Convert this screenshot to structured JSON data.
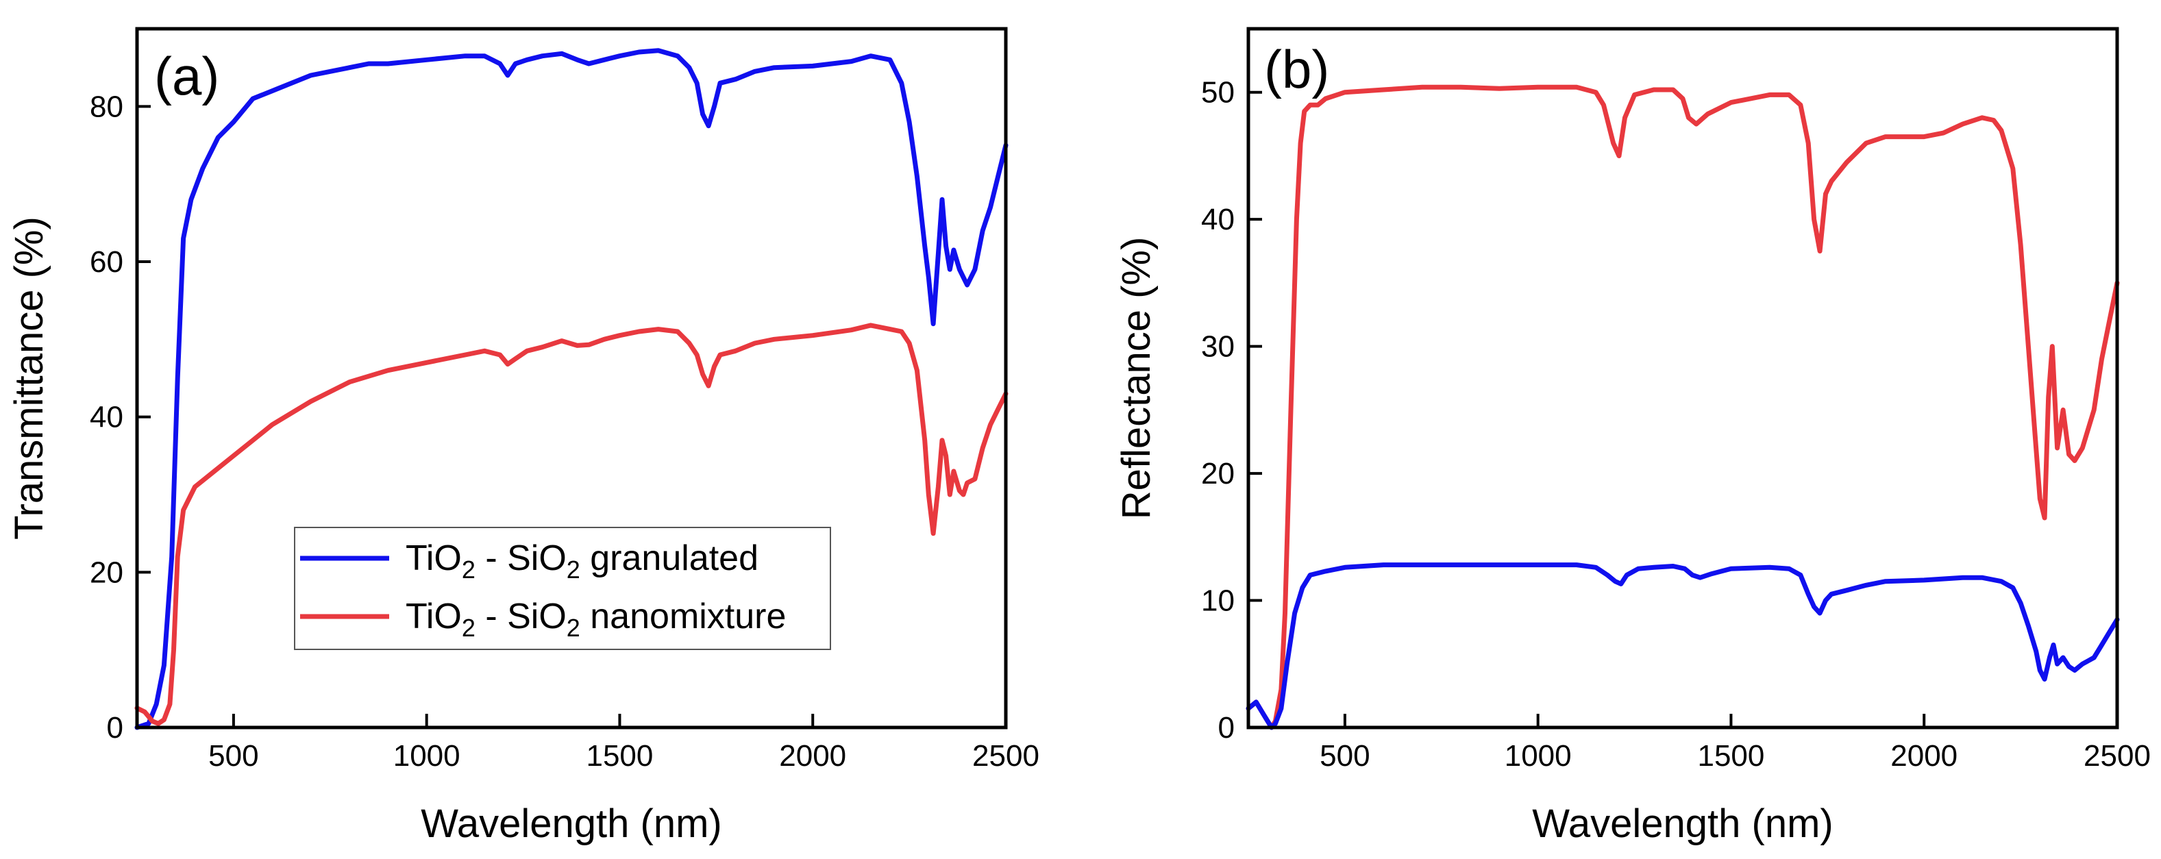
{
  "chart_data": [
    {
      "type": "line",
      "panel_label": "(a)",
      "xlabel": "Wavelength (nm)",
      "ylabel": "Transmittance (%)",
      "xlim": [
        250,
        2500
      ],
      "ylim": [
        0,
        90
      ],
      "xticks": [
        500,
        1000,
        1500,
        2000,
        2500
      ],
      "yticks": [
        0,
        20,
        40,
        60,
        80
      ],
      "legend": {
        "position": "center-left",
        "entries": [
          {
            "prefix": "TiO",
            "sub1": "2",
            "mid": " - SiO",
            "sub2": "2",
            "suffix": " granulated",
            "color": "#1010ee"
          },
          {
            "prefix": "TiO",
            "sub1": "2",
            "mid": " - SiO",
            "sub2": "2",
            "suffix": " nanomixture",
            "color": "#e8393f"
          }
        ]
      },
      "series": [
        {
          "name": "TiO2 - SiO2 granulated",
          "color": "#1010ee",
          "x": [
            250,
            280,
            300,
            320,
            340,
            355,
            370,
            390,
            420,
            460,
            500,
            550,
            600,
            700,
            800,
            850,
            900,
            1000,
            1100,
            1150,
            1190,
            1210,
            1230,
            1260,
            1300,
            1350,
            1390,
            1420,
            1460,
            1500,
            1550,
            1600,
            1650,
            1680,
            1700,
            1715,
            1730,
            1745,
            1760,
            1800,
            1850,
            1900,
            2000,
            2100,
            2150,
            2200,
            2230,
            2250,
            2270,
            2290,
            2300,
            2312,
            2325,
            2335,
            2345,
            2355,
            2365,
            2380,
            2390,
            2400,
            2420,
            2440,
            2460,
            2480,
            2500
          ],
          "values": [
            0,
            0.5,
            3,
            8,
            22,
            45,
            63,
            68,
            72,
            76,
            78,
            81,
            82,
            84,
            85,
            85.5,
            85.5,
            86,
            86.5,
            86.5,
            85.5,
            84,
            85.5,
            86,
            86.5,
            86.8,
            86,
            85.5,
            86,
            86.5,
            87,
            87.2,
            86.5,
            85,
            83,
            79,
            77.5,
            80,
            83,
            83.5,
            84.5,
            85,
            85.2,
            85.8,
            86.5,
            86,
            83,
            78,
            71,
            62,
            58,
            52,
            61,
            68,
            62,
            59,
            61.5,
            59,
            58,
            57,
            59,
            64,
            67,
            71,
            75
          ]
        },
        {
          "name": "TiO2 - SiO2 nanomixture",
          "color": "#e8393f",
          "x": [
            250,
            270,
            290,
            305,
            320,
            335,
            345,
            355,
            370,
            400,
            450,
            500,
            550,
            600,
            700,
            800,
            900,
            1000,
            1100,
            1150,
            1190,
            1210,
            1230,
            1260,
            1300,
            1350,
            1390,
            1420,
            1460,
            1500,
            1550,
            1600,
            1650,
            1680,
            1700,
            1715,
            1730,
            1745,
            1760,
            1800,
            1850,
            1900,
            2000,
            2100,
            2150,
            2180,
            2200,
            2230,
            2250,
            2270,
            2290,
            2300,
            2312,
            2325,
            2335,
            2345,
            2355,
            2365,
            2380,
            2390,
            2400,
            2420,
            2440,
            2460,
            2480,
            2500
          ],
          "values": [
            2.5,
            2,
            0.8,
            0.5,
            1,
            3,
            10,
            22,
            28,
            31,
            33,
            35,
            37,
            39,
            42,
            44.5,
            46,
            47,
            48,
            48.5,
            48,
            46.8,
            47.5,
            48.5,
            49,
            49.8,
            49.2,
            49.3,
            50,
            50.5,
            51,
            51.3,
            51,
            49.5,
            48,
            45.5,
            44,
            46.5,
            48,
            48.5,
            49.5,
            50,
            50.5,
            51.2,
            51.8,
            51.5,
            51.3,
            51,
            49.5,
            46,
            37,
            30,
            25,
            31,
            37,
            35,
            30,
            33,
            30.5,
            30,
            31.5,
            32,
            36,
            39,
            41,
            43
          ]
        }
      ]
    },
    {
      "type": "line",
      "panel_label": "(b)",
      "xlabel": "Wavelength (nm)",
      "ylabel": "Reflectance (%)",
      "xlim": [
        250,
        2500
      ],
      "ylim": [
        0,
        55
      ],
      "xticks": [
        500,
        1000,
        1500,
        2000,
        2500
      ],
      "yticks": [
        0,
        10,
        20,
        30,
        40,
        50
      ],
      "series": [
        {
          "name": "TiO2 - SiO2 nanomixture",
          "color": "#e8393f",
          "x": [
            250,
            270,
            290,
            310,
            320,
            335,
            345,
            360,
            375,
            385,
            395,
            410,
            430,
            450,
            500,
            600,
            700,
            800,
            900,
            1000,
            1100,
            1150,
            1170,
            1195,
            1210,
            1225,
            1250,
            1300,
            1350,
            1375,
            1390,
            1410,
            1440,
            1500,
            1600,
            1650,
            1680,
            1700,
            1715,
            1730,
            1745,
            1760,
            1800,
            1850,
            1900,
            2000,
            2050,
            2100,
            2150,
            2180,
            2200,
            2230,
            2250,
            2270,
            2285,
            2300,
            2312,
            2322,
            2332,
            2345,
            2360,
            2375,
            2390,
            2410,
            2440,
            2460,
            2480,
            2500
          ],
          "values": [
            1.5,
            2,
            1,
            0,
            0.5,
            3,
            9,
            25,
            40,
            46,
            48.5,
            49,
            49,
            49.5,
            50,
            50.2,
            50.4,
            50.4,
            50.3,
            50.4,
            50.4,
            50,
            49,
            46,
            45,
            48,
            49.8,
            50.2,
            50.2,
            49.5,
            48,
            47.5,
            48.3,
            49.2,
            49.8,
            49.8,
            49,
            46,
            40,
            37.5,
            42,
            43,
            44.5,
            46,
            46.5,
            46.5,
            46.8,
            47.5,
            48,
            47.8,
            47,
            44,
            38,
            30,
            24,
            18,
            16.5,
            26,
            30,
            22,
            25,
            21.5,
            21,
            22,
            25,
            29,
            32,
            35
          ]
        },
        {
          "name": "TiO2 - SiO2 granulated",
          "color": "#1010ee",
          "x": [
            250,
            270,
            290,
            310,
            320,
            335,
            350,
            370,
            390,
            410,
            450,
            500,
            600,
            700,
            800,
            900,
            1000,
            1100,
            1150,
            1180,
            1200,
            1215,
            1230,
            1260,
            1300,
            1350,
            1380,
            1400,
            1420,
            1450,
            1500,
            1600,
            1650,
            1680,
            1700,
            1715,
            1730,
            1745,
            1760,
            1800,
            1850,
            1900,
            2000,
            2100,
            2150,
            2200,
            2230,
            2250,
            2270,
            2290,
            2300,
            2312,
            2325,
            2335,
            2345,
            2360,
            2375,
            2390,
            2410,
            2440,
            2460,
            2480,
            2500
          ],
          "values": [
            1.5,
            2,
            1,
            0,
            0.3,
            1.5,
            5,
            9,
            11,
            12,
            12.3,
            12.6,
            12.8,
            12.8,
            12.8,
            12.8,
            12.8,
            12.8,
            12.6,
            12,
            11.5,
            11.3,
            12,
            12.5,
            12.6,
            12.7,
            12.5,
            12,
            11.8,
            12.1,
            12.5,
            12.6,
            12.5,
            12,
            10.5,
            9.5,
            9,
            10,
            10.5,
            10.8,
            11.2,
            11.5,
            11.6,
            11.8,
            11.8,
            11.5,
            11,
            9.8,
            8,
            6,
            4.5,
            3.8,
            5.5,
            6.5,
            5,
            5.5,
            4.8,
            4.5,
            5,
            5.5,
            6.5,
            7.5,
            8.5
          ]
        }
      ]
    }
  ]
}
